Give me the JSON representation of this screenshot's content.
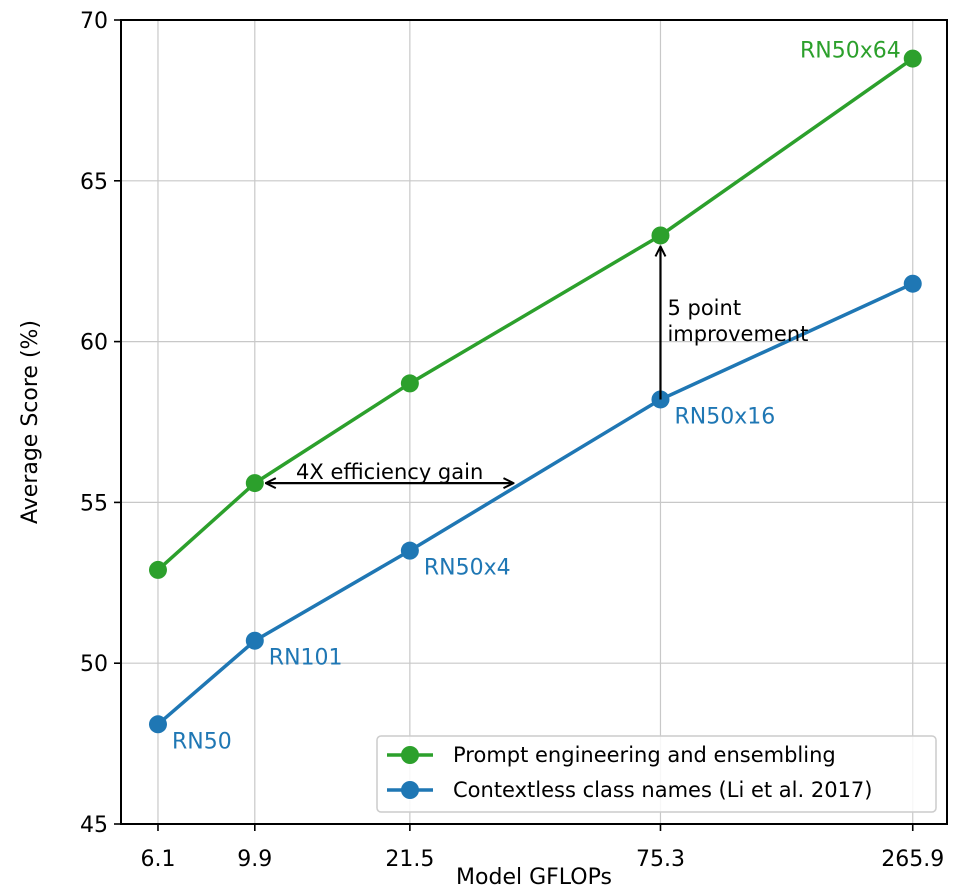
{
  "chart_data": {
    "type": "line",
    "x_label": "Model GFLOPs",
    "y_label": "Average Score (%)",
    "x": [
      6.1,
      9.9,
      21.5,
      75.3,
      265.9
    ],
    "x_scale": "log",
    "xlim": [
      5.07,
      315.6
    ],
    "xticks": [
      6.1,
      9.9,
      21.5,
      75.3,
      265.9
    ],
    "ylim": [
      45,
      70
    ],
    "yticks": [
      45,
      50,
      55,
      60,
      65,
      70
    ],
    "grid": true,
    "legend": "lower right",
    "series": [
      {
        "name": "Prompt engineering and ensembling",
        "color": "#2ca02c",
        "values": [
          52.9,
          55.6,
          58.7,
          63.3,
          68.8
        ],
        "labels": [
          null,
          null,
          null,
          null,
          "RN50x64"
        ],
        "label_side": "left"
      },
      {
        "name": "Contextless class names (Li et al. 2017)",
        "color": "#1f77b4",
        "values": [
          48.1,
          50.7,
          53.5,
          58.2,
          61.8
        ],
        "labels": [
          "RN50",
          "RN101",
          "RN50x4",
          "RN50x16",
          null
        ],
        "label_side": "below-right"
      }
    ],
    "annotations": [
      {
        "text": [
          "4X efficiency gain"
        ],
        "from": [
          9.9,
          55.6
        ],
        "to": [
          36.1,
          55.6
        ],
        "heads": "both"
      },
      {
        "text": [
          "5 point",
          "improvement"
        ],
        "from": [
          75.3,
          58.2
        ],
        "to": [
          75.3,
          63.3
        ],
        "heads": "end"
      }
    ]
  }
}
